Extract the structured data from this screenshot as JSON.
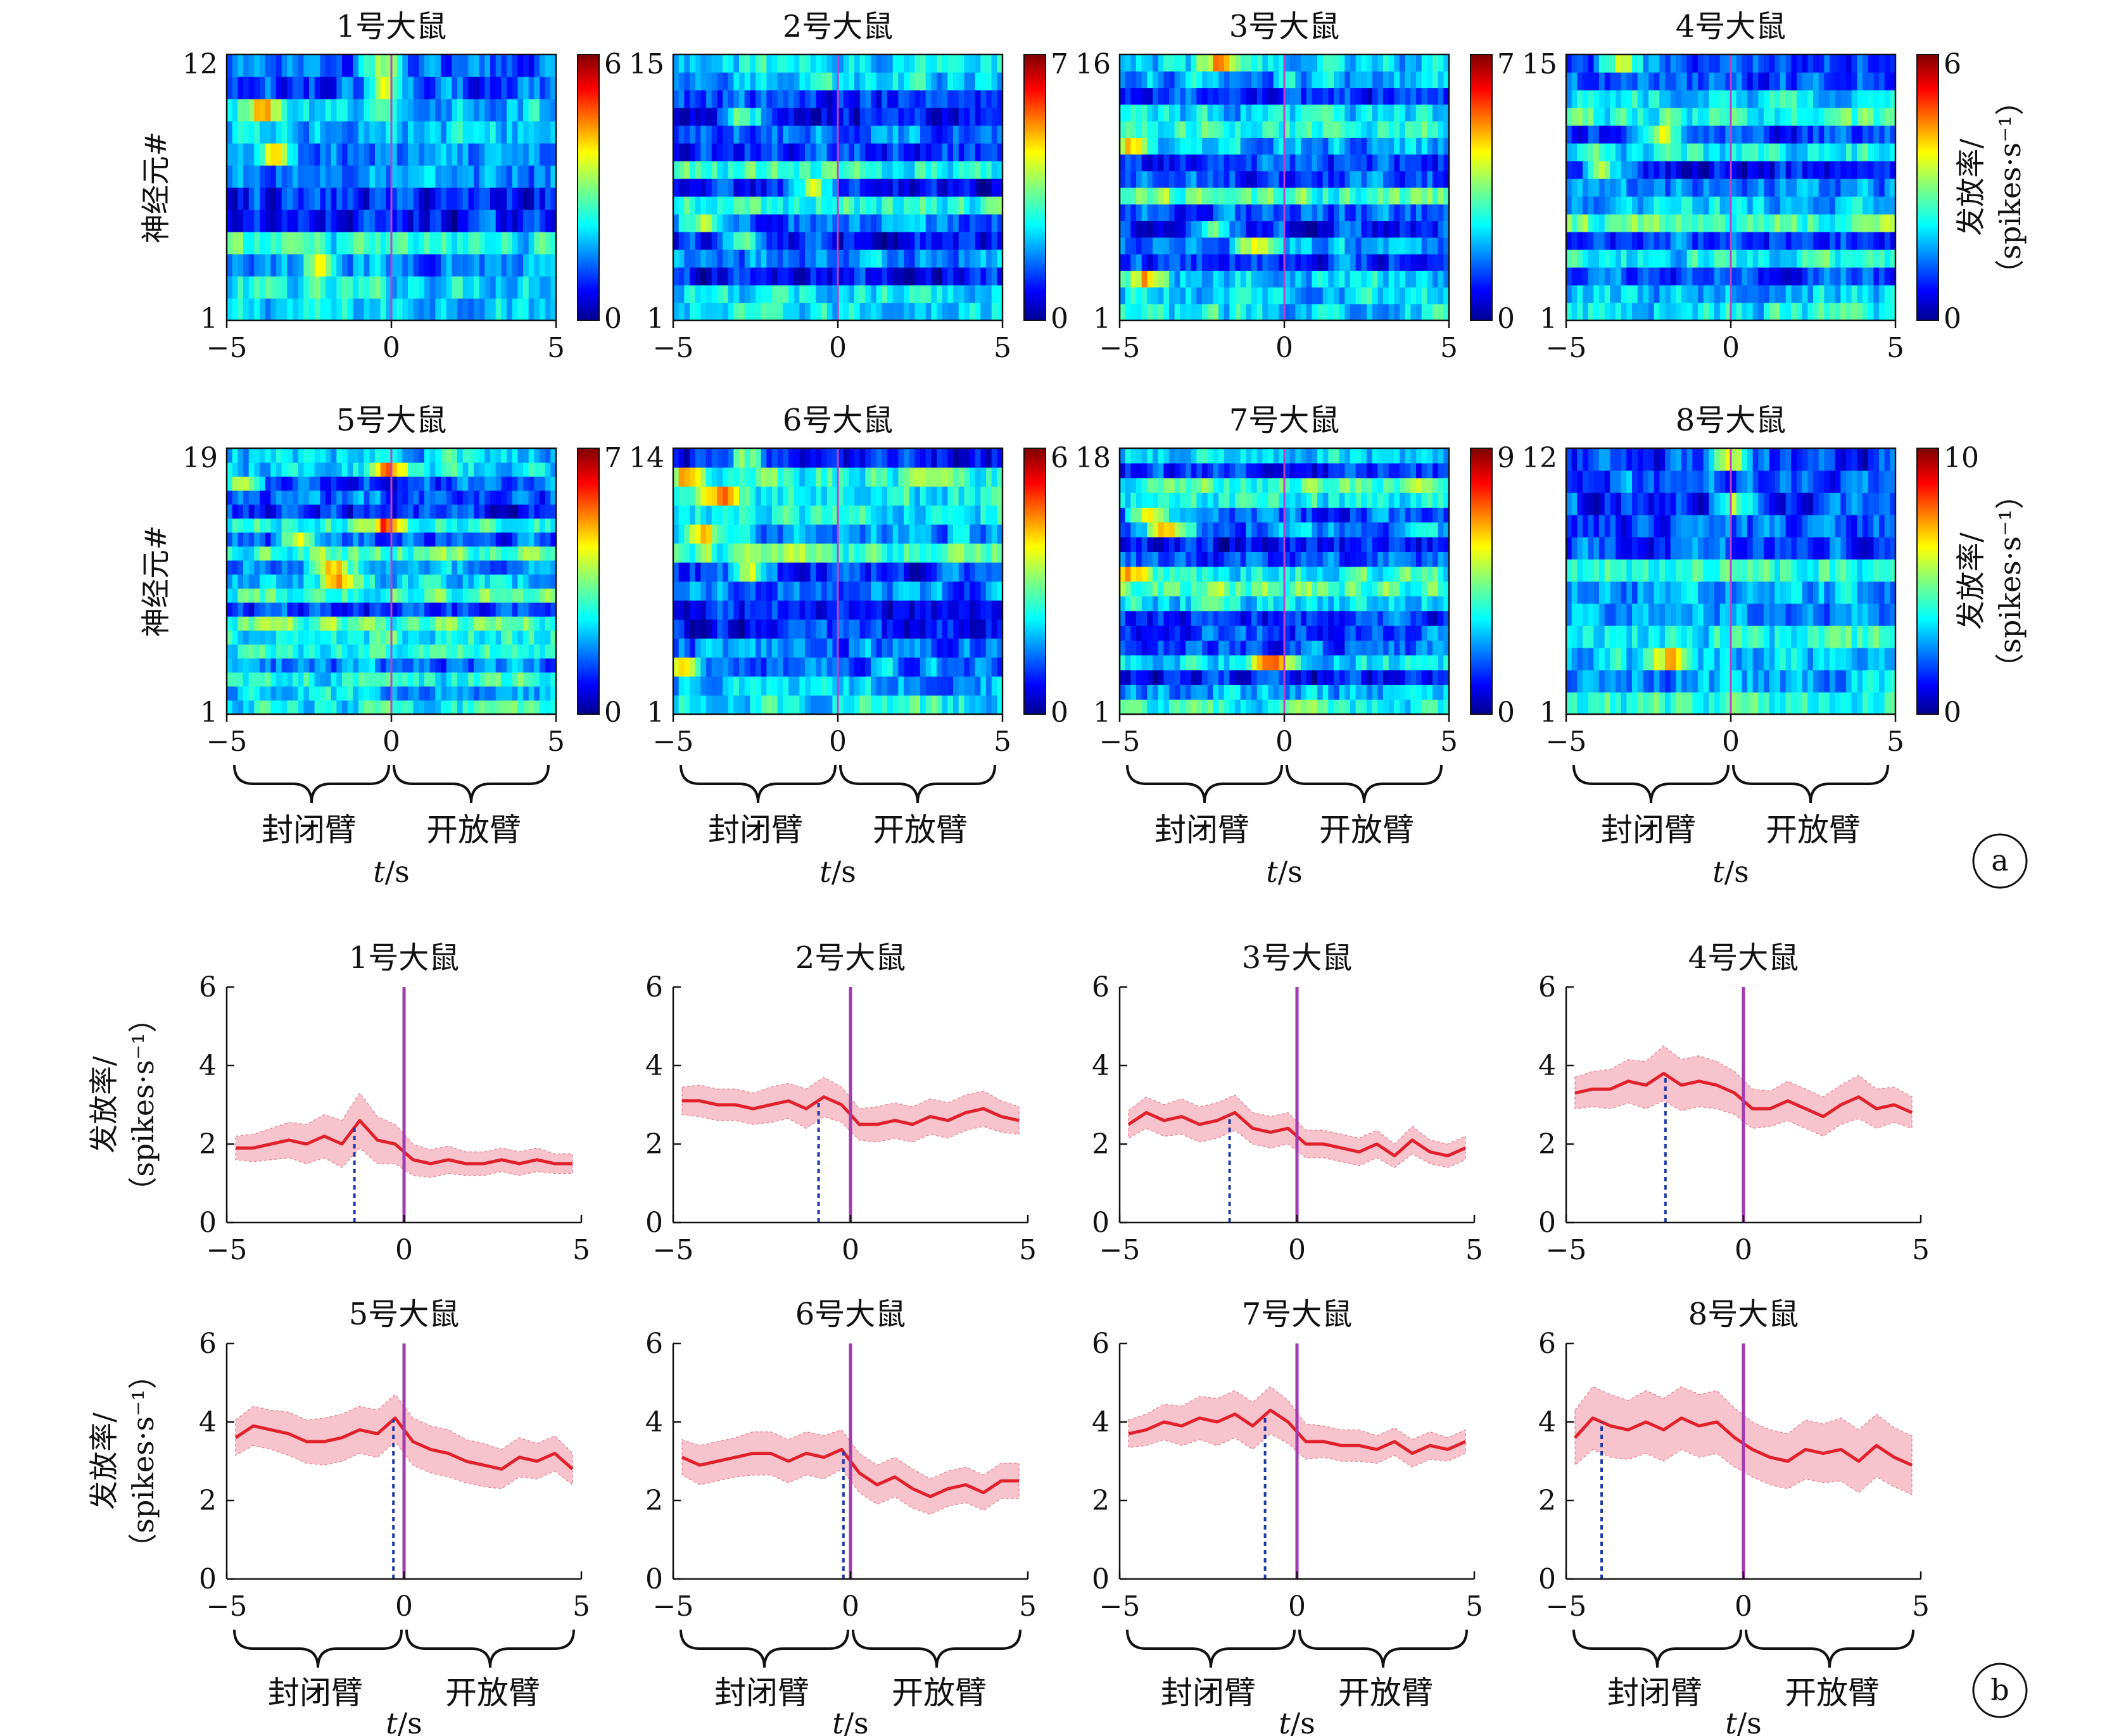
{
  "panel_labels": [
    "a",
    "b"
  ],
  "arm_labels": {
    "closed": "封闭臂",
    "open": "开放臂"
  },
  "xlabel": "t/s",
  "heatmap_ylabel": "神经元#",
  "rate_label_line1": "发放率/",
  "rate_label_line2": "（spikes·s⁻¹）",
  "colors": {
    "mean_line": "#e0202a",
    "band_fill": "#f7c3cc",
    "peak_marker": "#1f3aa8",
    "entry_line": "#a23ab0"
  },
  "chart_data": [
    {
      "type": "heatmap",
      "panel": "a",
      "xlim": [
        -5,
        5
      ],
      "x_ticks": [
        "−5",
        "0",
        "5"
      ],
      "colormap": "jet",
      "entry_time": 0,
      "rats": [
        {
          "title": "1号大鼠",
          "neurons": 12,
          "y_tick_top": "12",
          "y_tick_bottom": "1",
          "cmax": 6,
          "cbar_top": "6",
          "cbar_bottom": "0"
        },
        {
          "title": "2号大鼠",
          "neurons": 15,
          "y_tick_top": "15",
          "y_tick_bottom": "1",
          "cmax": 7,
          "cbar_top": "7",
          "cbar_bottom": "0"
        },
        {
          "title": "3号大鼠",
          "neurons": 16,
          "y_tick_top": "16",
          "y_tick_bottom": "1",
          "cmax": 7,
          "cbar_top": "7",
          "cbar_bottom": "0"
        },
        {
          "title": "4号大鼠",
          "neurons": 15,
          "y_tick_top": "15",
          "y_tick_bottom": "1",
          "cmax": 6,
          "cbar_top": "6",
          "cbar_bottom": "0"
        },
        {
          "title": "5号大鼠",
          "neurons": 19,
          "y_tick_top": "19",
          "y_tick_bottom": "1",
          "cmax": 7,
          "cbar_top": "7",
          "cbar_bottom": "0"
        },
        {
          "title": "6号大鼠",
          "neurons": 14,
          "y_tick_top": "14",
          "y_tick_bottom": "1",
          "cmax": 6,
          "cbar_top": "6",
          "cbar_bottom": "0"
        },
        {
          "title": "7号大鼠",
          "neurons": 18,
          "y_tick_top": "18",
          "y_tick_bottom": "1",
          "cmax": 9,
          "cbar_top": "9",
          "cbar_bottom": "0"
        },
        {
          "title": "8号大鼠",
          "neurons": 12,
          "y_tick_top": "12",
          "y_tick_bottom": "1",
          "cmax": 10,
          "cbar_top": "10",
          "cbar_bottom": "0"
        }
      ]
    },
    {
      "type": "line",
      "panel": "b",
      "xlim": [
        -5,
        5
      ],
      "ylim": [
        0,
        6
      ],
      "x_ticks": [
        "−5",
        "0",
        "5"
      ],
      "y_ticks": [
        "0",
        "2",
        "4",
        "6"
      ],
      "entry_time": 0,
      "x": [
        -4.75,
        -4.25,
        -3.75,
        -3.25,
        -2.75,
        -2.25,
        -1.75,
        -1.25,
        -0.75,
        -0.25,
        0.25,
        0.75,
        1.25,
        1.75,
        2.25,
        2.75,
        3.25,
        3.75,
        4.25,
        4.75
      ],
      "rats": [
        {
          "title": "1号大鼠",
          "peak_time": -1.4,
          "mean": [
            1.9,
            1.9,
            2.0,
            2.1,
            2.0,
            2.2,
            2.0,
            2.6,
            2.1,
            2.0,
            1.6,
            1.5,
            1.6,
            1.5,
            1.5,
            1.6,
            1.5,
            1.6,
            1.5,
            1.5
          ],
          "band_halfwidth": [
            0.3,
            0.35,
            0.4,
            0.45,
            0.5,
            0.55,
            0.6,
            0.7,
            0.6,
            0.5,
            0.4,
            0.35,
            0.35,
            0.3,
            0.3,
            0.3,
            0.3,
            0.3,
            0.25,
            0.25
          ]
        },
        {
          "title": "2号大鼠",
          "peak_time": -0.9,
          "mean": [
            3.1,
            3.1,
            3.0,
            3.0,
            2.9,
            3.0,
            3.1,
            2.9,
            3.2,
            3.0,
            2.5,
            2.5,
            2.6,
            2.5,
            2.7,
            2.6,
            2.8,
            2.9,
            2.7,
            2.6
          ],
          "band_halfwidth": [
            0.35,
            0.4,
            0.4,
            0.4,
            0.4,
            0.45,
            0.45,
            0.5,
            0.5,
            0.45,
            0.4,
            0.45,
            0.45,
            0.45,
            0.45,
            0.45,
            0.45,
            0.45,
            0.4,
            0.35
          ]
        },
        {
          "title": "3号大鼠",
          "peak_time": -1.9,
          "mean": [
            2.5,
            2.8,
            2.6,
            2.7,
            2.5,
            2.6,
            2.8,
            2.4,
            2.3,
            2.4,
            2.0,
            2.0,
            1.9,
            1.8,
            2.0,
            1.7,
            2.1,
            1.8,
            1.7,
            1.9
          ],
          "band_halfwidth": [
            0.35,
            0.4,
            0.4,
            0.45,
            0.45,
            0.45,
            0.45,
            0.4,
            0.4,
            0.4,
            0.35,
            0.35,
            0.35,
            0.35,
            0.35,
            0.3,
            0.35,
            0.3,
            0.3,
            0.3
          ]
        },
        {
          "title": "4号大鼠",
          "peak_time": -2.2,
          "mean": [
            3.3,
            3.4,
            3.4,
            3.6,
            3.5,
            3.8,
            3.5,
            3.6,
            3.5,
            3.3,
            2.9,
            2.9,
            3.1,
            2.9,
            2.7,
            3.0,
            3.2,
            2.9,
            3.0,
            2.8
          ],
          "band_halfwidth": [
            0.4,
            0.45,
            0.5,
            0.55,
            0.6,
            0.7,
            0.65,
            0.65,
            0.6,
            0.55,
            0.5,
            0.45,
            0.5,
            0.5,
            0.5,
            0.5,
            0.55,
            0.5,
            0.45,
            0.4
          ]
        },
        {
          "title": "5号大鼠",
          "peak_time": -0.3,
          "mean": [
            3.6,
            3.9,
            3.8,
            3.7,
            3.5,
            3.5,
            3.6,
            3.8,
            3.7,
            4.1,
            3.5,
            3.3,
            3.2,
            3.0,
            2.9,
            2.8,
            3.1,
            3.0,
            3.2,
            2.8
          ],
          "band_halfwidth": [
            0.45,
            0.5,
            0.5,
            0.55,
            0.55,
            0.6,
            0.6,
            0.6,
            0.6,
            0.6,
            0.6,
            0.6,
            0.6,
            0.55,
            0.55,
            0.5,
            0.5,
            0.45,
            0.45,
            0.4
          ]
        },
        {
          "title": "6号大鼠",
          "peak_time": -0.2,
          "mean": [
            3.1,
            2.9,
            3.0,
            3.1,
            3.2,
            3.2,
            3.0,
            3.2,
            3.1,
            3.3,
            2.7,
            2.4,
            2.6,
            2.3,
            2.1,
            2.3,
            2.4,
            2.2,
            2.5,
            2.5
          ],
          "band_halfwidth": [
            0.45,
            0.5,
            0.5,
            0.5,
            0.55,
            0.55,
            0.55,
            0.55,
            0.55,
            0.5,
            0.5,
            0.5,
            0.5,
            0.5,
            0.45,
            0.45,
            0.45,
            0.45,
            0.45,
            0.45
          ]
        },
        {
          "title": "7号大鼠",
          "peak_time": -0.9,
          "mean": [
            3.7,
            3.8,
            4.0,
            3.9,
            4.1,
            4.0,
            4.2,
            3.9,
            4.3,
            4.0,
            3.5,
            3.5,
            3.4,
            3.4,
            3.3,
            3.5,
            3.2,
            3.4,
            3.3,
            3.5
          ],
          "band_halfwidth": [
            0.35,
            0.4,
            0.45,
            0.5,
            0.55,
            0.6,
            0.6,
            0.6,
            0.6,
            0.55,
            0.45,
            0.4,
            0.4,
            0.4,
            0.35,
            0.35,
            0.35,
            0.35,
            0.3,
            0.3
          ]
        },
        {
          "title": "8号大鼠",
          "peak_time": -4.0,
          "mean": [
            3.6,
            4.1,
            3.9,
            3.8,
            4.0,
            3.8,
            4.1,
            3.9,
            4.0,
            3.6,
            3.3,
            3.1,
            3.0,
            3.3,
            3.2,
            3.3,
            3.0,
            3.4,
            3.1,
            2.9
          ],
          "band_halfwidth": [
            0.7,
            0.8,
            0.8,
            0.75,
            0.8,
            0.8,
            0.8,
            0.8,
            0.8,
            0.75,
            0.7,
            0.7,
            0.7,
            0.75,
            0.75,
            0.8,
            0.8,
            0.8,
            0.75,
            0.75
          ]
        }
      ]
    }
  ]
}
